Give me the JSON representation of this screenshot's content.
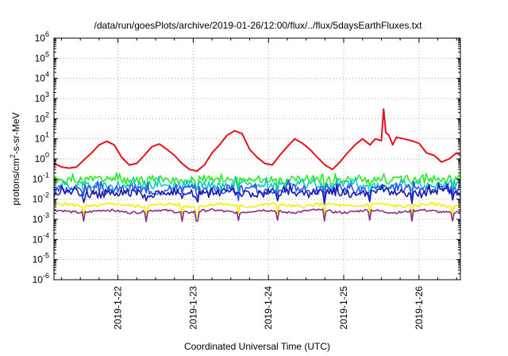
{
  "chart_data": {
    "type": "line",
    "title": "/data/run/goesPlots/archive/2019-01-26/12:00/flux/../flux/5daysEarthFluxes.txt",
    "xlabel": "Coordinated Universal Time (UTC)",
    "ylabel_main": "protons/cm",
    "ylabel_sup": "2",
    "ylabel_tail": "-s-sr-MeV",
    "yscale": "log",
    "ylim_exp": [
      -6,
      6
    ],
    "y_tick_exponents": [
      -6,
      -5,
      -4,
      -3,
      -2,
      -1,
      0,
      1,
      2,
      3,
      4,
      5,
      6
    ],
    "y_tick_base": "10",
    "xlim_days": [
      21.15,
      26.55
    ],
    "x_ticks": [
      {
        "day": 22,
        "label": "2019-1-22"
      },
      {
        "day": 23,
        "label": "2019-1-23"
      },
      {
        "day": 24,
        "label": "2019-1-24"
      },
      {
        "day": 25,
        "label": "2019-1-25"
      },
      {
        "day": 26,
        "label": "2019-1-26"
      }
    ],
    "grid": true,
    "legend": "none",
    "series": [
      {
        "color": "#e8101a",
        "x": [
          21.15,
          21.25,
          21.35,
          21.45,
          21.55,
          21.65,
          21.75,
          21.85,
          21.95,
          22.05,
          22.15,
          22.25,
          22.35,
          22.45,
          22.55,
          22.65,
          22.75,
          22.85,
          22.95,
          23.05,
          23.15,
          23.25,
          23.35,
          23.45,
          23.55,
          23.65,
          23.75,
          23.85,
          23.95,
          24.05,
          24.15,
          24.25,
          24.35,
          24.45,
          24.55,
          24.65,
          24.75,
          24.85,
          24.95,
          25.05,
          25.15,
          25.25,
          25.35,
          25.42,
          25.5,
          25.53,
          25.56,
          25.6,
          25.65,
          25.7,
          25.8,
          25.9,
          26.0,
          26.1,
          26.2,
          26.3,
          26.4,
          26.5,
          26.55
        ],
        "y": [
          0.6,
          0.4,
          0.35,
          0.4,
          0.9,
          2,
          5,
          7.5,
          5,
          1.2,
          0.5,
          0.6,
          1.5,
          4,
          5.5,
          3,
          1.5,
          0.6,
          0.3,
          0.25,
          0.5,
          2,
          5,
          15,
          25,
          18,
          3,
          1.2,
          0.6,
          0.5,
          1.5,
          4,
          10,
          6,
          3,
          1.2,
          0.5,
          0.3,
          0.7,
          2,
          5,
          10,
          5,
          10,
          8,
          300,
          20,
          15,
          5,
          12,
          10,
          8,
          6,
          2,
          1.5,
          0.7,
          1,
          2,
          1.5
        ]
      },
      {
        "color": "#22ee22",
        "base": 0.09,
        "amp": 0.18,
        "seed": 1
      },
      {
        "color": "#10c8c0",
        "base": 0.05,
        "amp": 0.2,
        "seed": 2
      },
      {
        "color": "#3355ee",
        "base": 0.03,
        "amp": 0.22,
        "seed": 3
      },
      {
        "color": "#1a1ab0",
        "base": 0.02,
        "amp": 0.2,
        "seed": 4
      },
      {
        "color": "#f0f000",
        "base": 0.005,
        "amp": 0.08,
        "seed": 5
      },
      {
        "color": "#8a2a8a",
        "base": 0.0025,
        "amp": 0.06,
        "seed": 6
      }
    ]
  }
}
